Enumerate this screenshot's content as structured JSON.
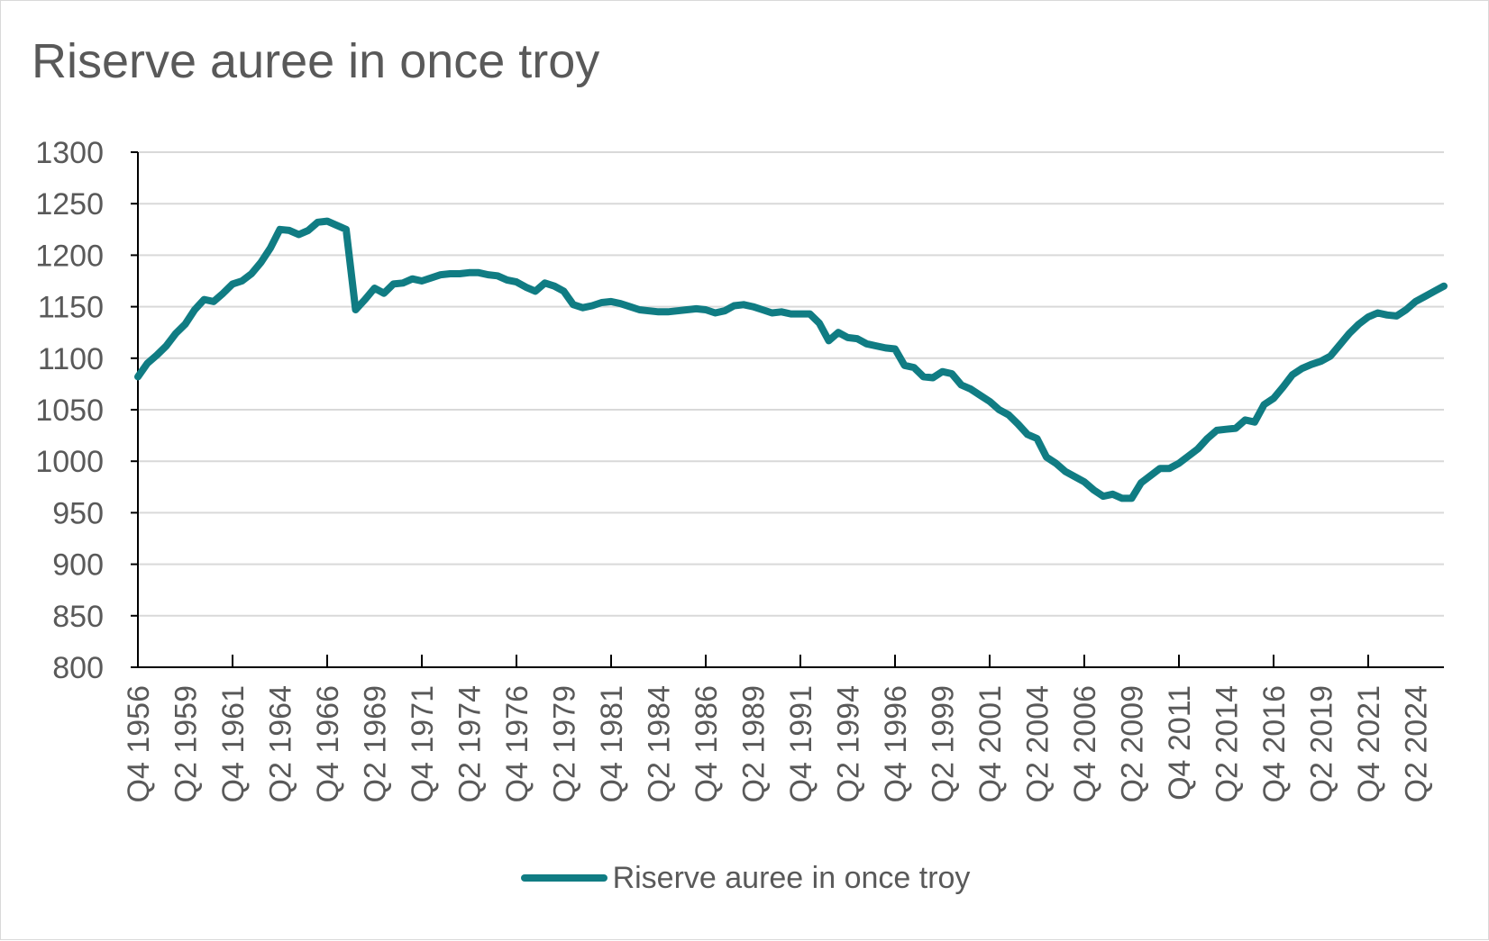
{
  "title": "Riserve auree in once troy",
  "colors": {
    "line": "#107c83",
    "grid": "#d9d9d9",
    "axis": "#000000",
    "text": "#595959"
  },
  "chart_data": {
    "type": "line",
    "title": "Riserve auree in once troy",
    "xlabel": "",
    "ylabel": "",
    "ylim": [
      800,
      1300
    ],
    "y_ticks": [
      800,
      850,
      900,
      950,
      1000,
      1050,
      1100,
      1150,
      1200,
      1250,
      1300
    ],
    "x_tick_labels": [
      "Q4 1956",
      "Q2 1959",
      "Q4 1961",
      "Q2 1964",
      "Q4 1966",
      "Q2 1969",
      "Q4 1971",
      "Q2 1974",
      "Q4 1976",
      "Q2 1979",
      "Q4 1981",
      "Q2 1984",
      "Q4 1986",
      "Q2 1989",
      "Q4 1991",
      "Q2 1994",
      "Q4 1996",
      "Q2 1999",
      "Q4 2001",
      "Q2 2004",
      "Q4 2006",
      "Q2 2009",
      "Q4 2011",
      "Q2 2014",
      "Q4 2016",
      "Q2 2019",
      "Q4 2021",
      "Q2 2024"
    ],
    "grid": true,
    "legend": "bottom",
    "series": [
      {
        "name": "Riserve auree in once troy",
        "points": [
          [
            "Q4 1956",
            1082
          ],
          [
            "Q2 1957",
            1095
          ],
          [
            "Q4 1957",
            1103
          ],
          [
            "Q2 1958",
            1112
          ],
          [
            "Q4 1958",
            1124
          ],
          [
            "Q2 1959",
            1133
          ],
          [
            "Q4 1959",
            1147
          ],
          [
            "Q2 1960",
            1157
          ],
          [
            "Q4 1960",
            1155
          ],
          [
            "Q2 1961",
            1163
          ],
          [
            "Q4 1961",
            1172
          ],
          [
            "Q2 1962",
            1175
          ],
          [
            "Q4 1962",
            1182
          ],
          [
            "Q2 1963",
            1193
          ],
          [
            "Q4 1963",
            1207
          ],
          [
            "Q2 1964",
            1225
          ],
          [
            "Q4 1964",
            1224
          ],
          [
            "Q2 1965",
            1220
          ],
          [
            "Q4 1965",
            1224
          ],
          [
            "Q2 1966",
            1232
          ],
          [
            "Q4 1966",
            1233
          ],
          [
            "Q2 1967",
            1229
          ],
          [
            "Q4 1967",
            1225
          ],
          [
            "Q2 1968",
            1147
          ],
          [
            "Q4 1968",
            1157
          ],
          [
            "Q2 1969",
            1168
          ],
          [
            "Q4 1969",
            1163
          ],
          [
            "Q2 1970",
            1172
          ],
          [
            "Q4 1970",
            1173
          ],
          [
            "Q2 1971",
            1177
          ],
          [
            "Q4 1971",
            1175
          ],
          [
            "Q2 1972",
            1178
          ],
          [
            "Q4 1972",
            1181
          ],
          [
            "Q2 1973",
            1182
          ],
          [
            "Q4 1973",
            1182
          ],
          [
            "Q2 1974",
            1183
          ],
          [
            "Q4 1974",
            1183
          ],
          [
            "Q2 1975",
            1181
          ],
          [
            "Q4 1975",
            1180
          ],
          [
            "Q2 1976",
            1176
          ],
          [
            "Q4 1976",
            1174
          ],
          [
            "Q2 1977",
            1169
          ],
          [
            "Q4 1977",
            1165
          ],
          [
            "Q2 1978",
            1173
          ],
          [
            "Q4 1978",
            1170
          ],
          [
            "Q2 1979",
            1165
          ],
          [
            "Q4 1979",
            1152
          ],
          [
            "Q2 1980",
            1149
          ],
          [
            "Q4 1980",
            1151
          ],
          [
            "Q2 1981",
            1154
          ],
          [
            "Q4 1981",
            1155
          ],
          [
            "Q2 1982",
            1153
          ],
          [
            "Q4 1982",
            1150
          ],
          [
            "Q2 1983",
            1147
          ],
          [
            "Q4 1983",
            1146
          ],
          [
            "Q2 1984",
            1145
          ],
          [
            "Q4 1984",
            1145
          ],
          [
            "Q2 1985",
            1146
          ],
          [
            "Q4 1985",
            1147
          ],
          [
            "Q2 1986",
            1148
          ],
          [
            "Q4 1986",
            1147
          ],
          [
            "Q2 1987",
            1144
          ],
          [
            "Q4 1987",
            1146
          ],
          [
            "Q2 1988",
            1151
          ],
          [
            "Q4 1988",
            1152
          ],
          [
            "Q2 1989",
            1150
          ],
          [
            "Q4 1989",
            1147
          ],
          [
            "Q2 1990",
            1144
          ],
          [
            "Q4 1990",
            1145
          ],
          [
            "Q2 1991",
            1143
          ],
          [
            "Q4 1991",
            1143
          ],
          [
            "Q2 1992",
            1143
          ],
          [
            "Q4 1992",
            1134
          ],
          [
            "Q2 1993",
            1117
          ],
          [
            "Q4 1993",
            1125
          ],
          [
            "Q2 1994",
            1120
          ],
          [
            "Q4 1994",
            1119
          ],
          [
            "Q2 1995",
            1114
          ],
          [
            "Q4 1995",
            1112
          ],
          [
            "Q2 1996",
            1110
          ],
          [
            "Q4 1996",
            1109
          ],
          [
            "Q2 1997",
            1093
          ],
          [
            "Q4 1997",
            1091
          ],
          [
            "Q2 1998",
            1082
          ],
          [
            "Q4 1998",
            1081
          ],
          [
            "Q2 1999",
            1087
          ],
          [
            "Q4 1999",
            1085
          ],
          [
            "Q2 2000",
            1074
          ],
          [
            "Q4 2000",
            1070
          ],
          [
            "Q2 2001",
            1064
          ],
          [
            "Q4 2001",
            1058
          ],
          [
            "Q2 2002",
            1050
          ],
          [
            "Q4 2002",
            1045
          ],
          [
            "Q2 2003",
            1036
          ],
          [
            "Q4 2003",
            1026
          ],
          [
            "Q2 2004",
            1022
          ],
          [
            "Q4 2004",
            1004
          ],
          [
            "Q2 2005",
            998
          ],
          [
            "Q4 2005",
            990
          ],
          [
            "Q2 2006",
            985
          ],
          [
            "Q4 2006",
            980
          ],
          [
            "Q2 2007",
            972
          ],
          [
            "Q4 2007",
            966
          ],
          [
            "Q2 2008",
            968
          ],
          [
            "Q4 2008",
            964
          ],
          [
            "Q2 2009",
            964
          ],
          [
            "Q4 2009",
            979
          ],
          [
            "Q2 2010",
            986
          ],
          [
            "Q4 2010",
            993
          ],
          [
            "Q2 2011",
            993
          ],
          [
            "Q4 2011",
            998
          ],
          [
            "Q2 2012",
            1005
          ],
          [
            "Q4 2012",
            1012
          ],
          [
            "Q2 2013",
            1022
          ],
          [
            "Q4 2013",
            1030
          ],
          [
            "Q2 2014",
            1031
          ],
          [
            "Q4 2014",
            1032
          ],
          [
            "Q2 2015",
            1040
          ],
          [
            "Q4 2015",
            1038
          ],
          [
            "Q2 2016",
            1055
          ],
          [
            "Q4 2016",
            1061
          ],
          [
            "Q2 2017",
            1072
          ],
          [
            "Q4 2017",
            1084
          ],
          [
            "Q2 2018",
            1090
          ],
          [
            "Q4 2018",
            1094
          ],
          [
            "Q2 2019",
            1097
          ],
          [
            "Q4 2019",
            1102
          ],
          [
            "Q2 2020",
            1113
          ],
          [
            "Q4 2020",
            1124
          ],
          [
            "Q2 2021",
            1133
          ],
          [
            "Q4 2021",
            1140
          ],
          [
            "Q2 2022",
            1144
          ],
          [
            "Q4 2022",
            1142
          ],
          [
            "Q2 2023",
            1141
          ],
          [
            "Q4 2023",
            1147
          ],
          [
            "Q2 2024",
            1155
          ],
          [
            "Q4 2024",
            1160
          ],
          [
            "Q2 2025",
            1165
          ],
          [
            "Q4 2025",
            1170
          ]
        ]
      }
    ]
  }
}
